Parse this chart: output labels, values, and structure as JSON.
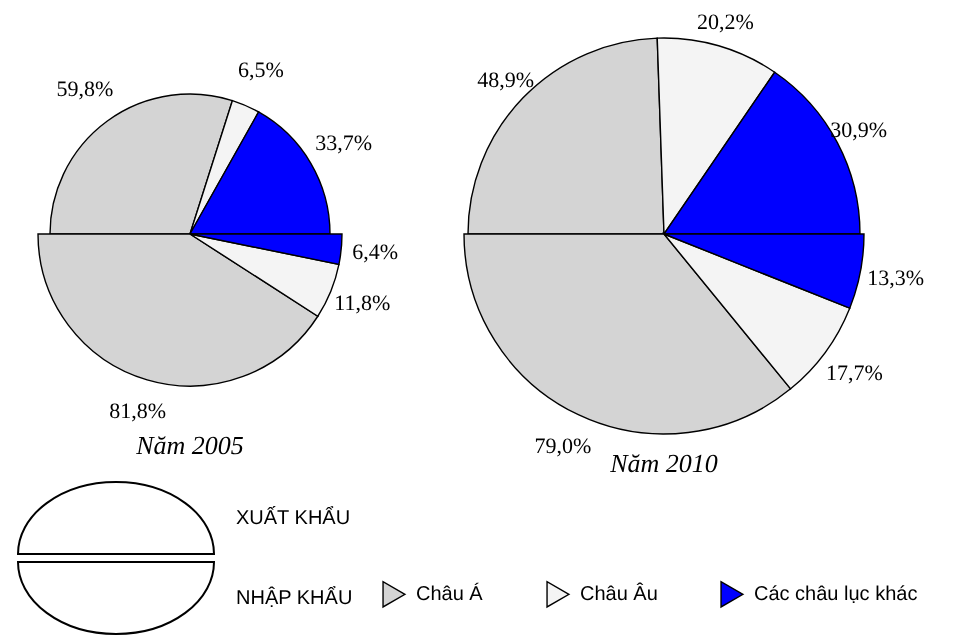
{
  "chart_data": [
    {
      "type": "pie",
      "categories": [
        "Châu Á",
        "Châu Âu",
        "Các châu lục khác"
      ],
      "values": [
        59.8,
        6.5,
        33.7
      ],
      "colors": [
        "#d4d4d4",
        "#f4f4f4",
        "#0000ff"
      ],
      "value_labels": [
        "59,8%",
        "6,5%",
        "33,7%"
      ],
      "legend": "bottom",
      "annotations": [
        "XUẤT KHẨU",
        "NHẬP KHẨU"
      ]
    },
    {
      "type": "pie",
      "title": "Năm 2005",
      "categories": [
        null,
        null,
        null
      ],
      "values": [
        81.8,
        11.8,
        6.4
      ],
      "colors": [
        "#d4d4d4",
        "#f4f4f4",
        "#0000ff"
      ],
      "value_labels": [
        "81,8%",
        "11,8%",
        "6,4%"
      ]
    },
    {
      "type": "pie",
      "categories": [
        null,
        null,
        null
      ],
      "values": [
        48.9,
        20.2,
        30.9
      ],
      "colors": [
        "#d4d4d4",
        "#f4f4f4",
        "#0000ff"
      ],
      "value_labels": [
        "48,9%",
        "20,2%",
        "30,9%"
      ]
    },
    {
      "type": "pie",
      "title": "Năm 2010",
      "categories": [
        null,
        null,
        null
      ],
      "values": [
        79.0,
        17.7,
        13.3
      ],
      "colors": [
        "#d4d4d4",
        "#f4f4f4",
        "#0000ff"
      ],
      "value_labels": [
        "79,0%",
        "17,7%",
        "13,3%"
      ]
    }
  ]
}
